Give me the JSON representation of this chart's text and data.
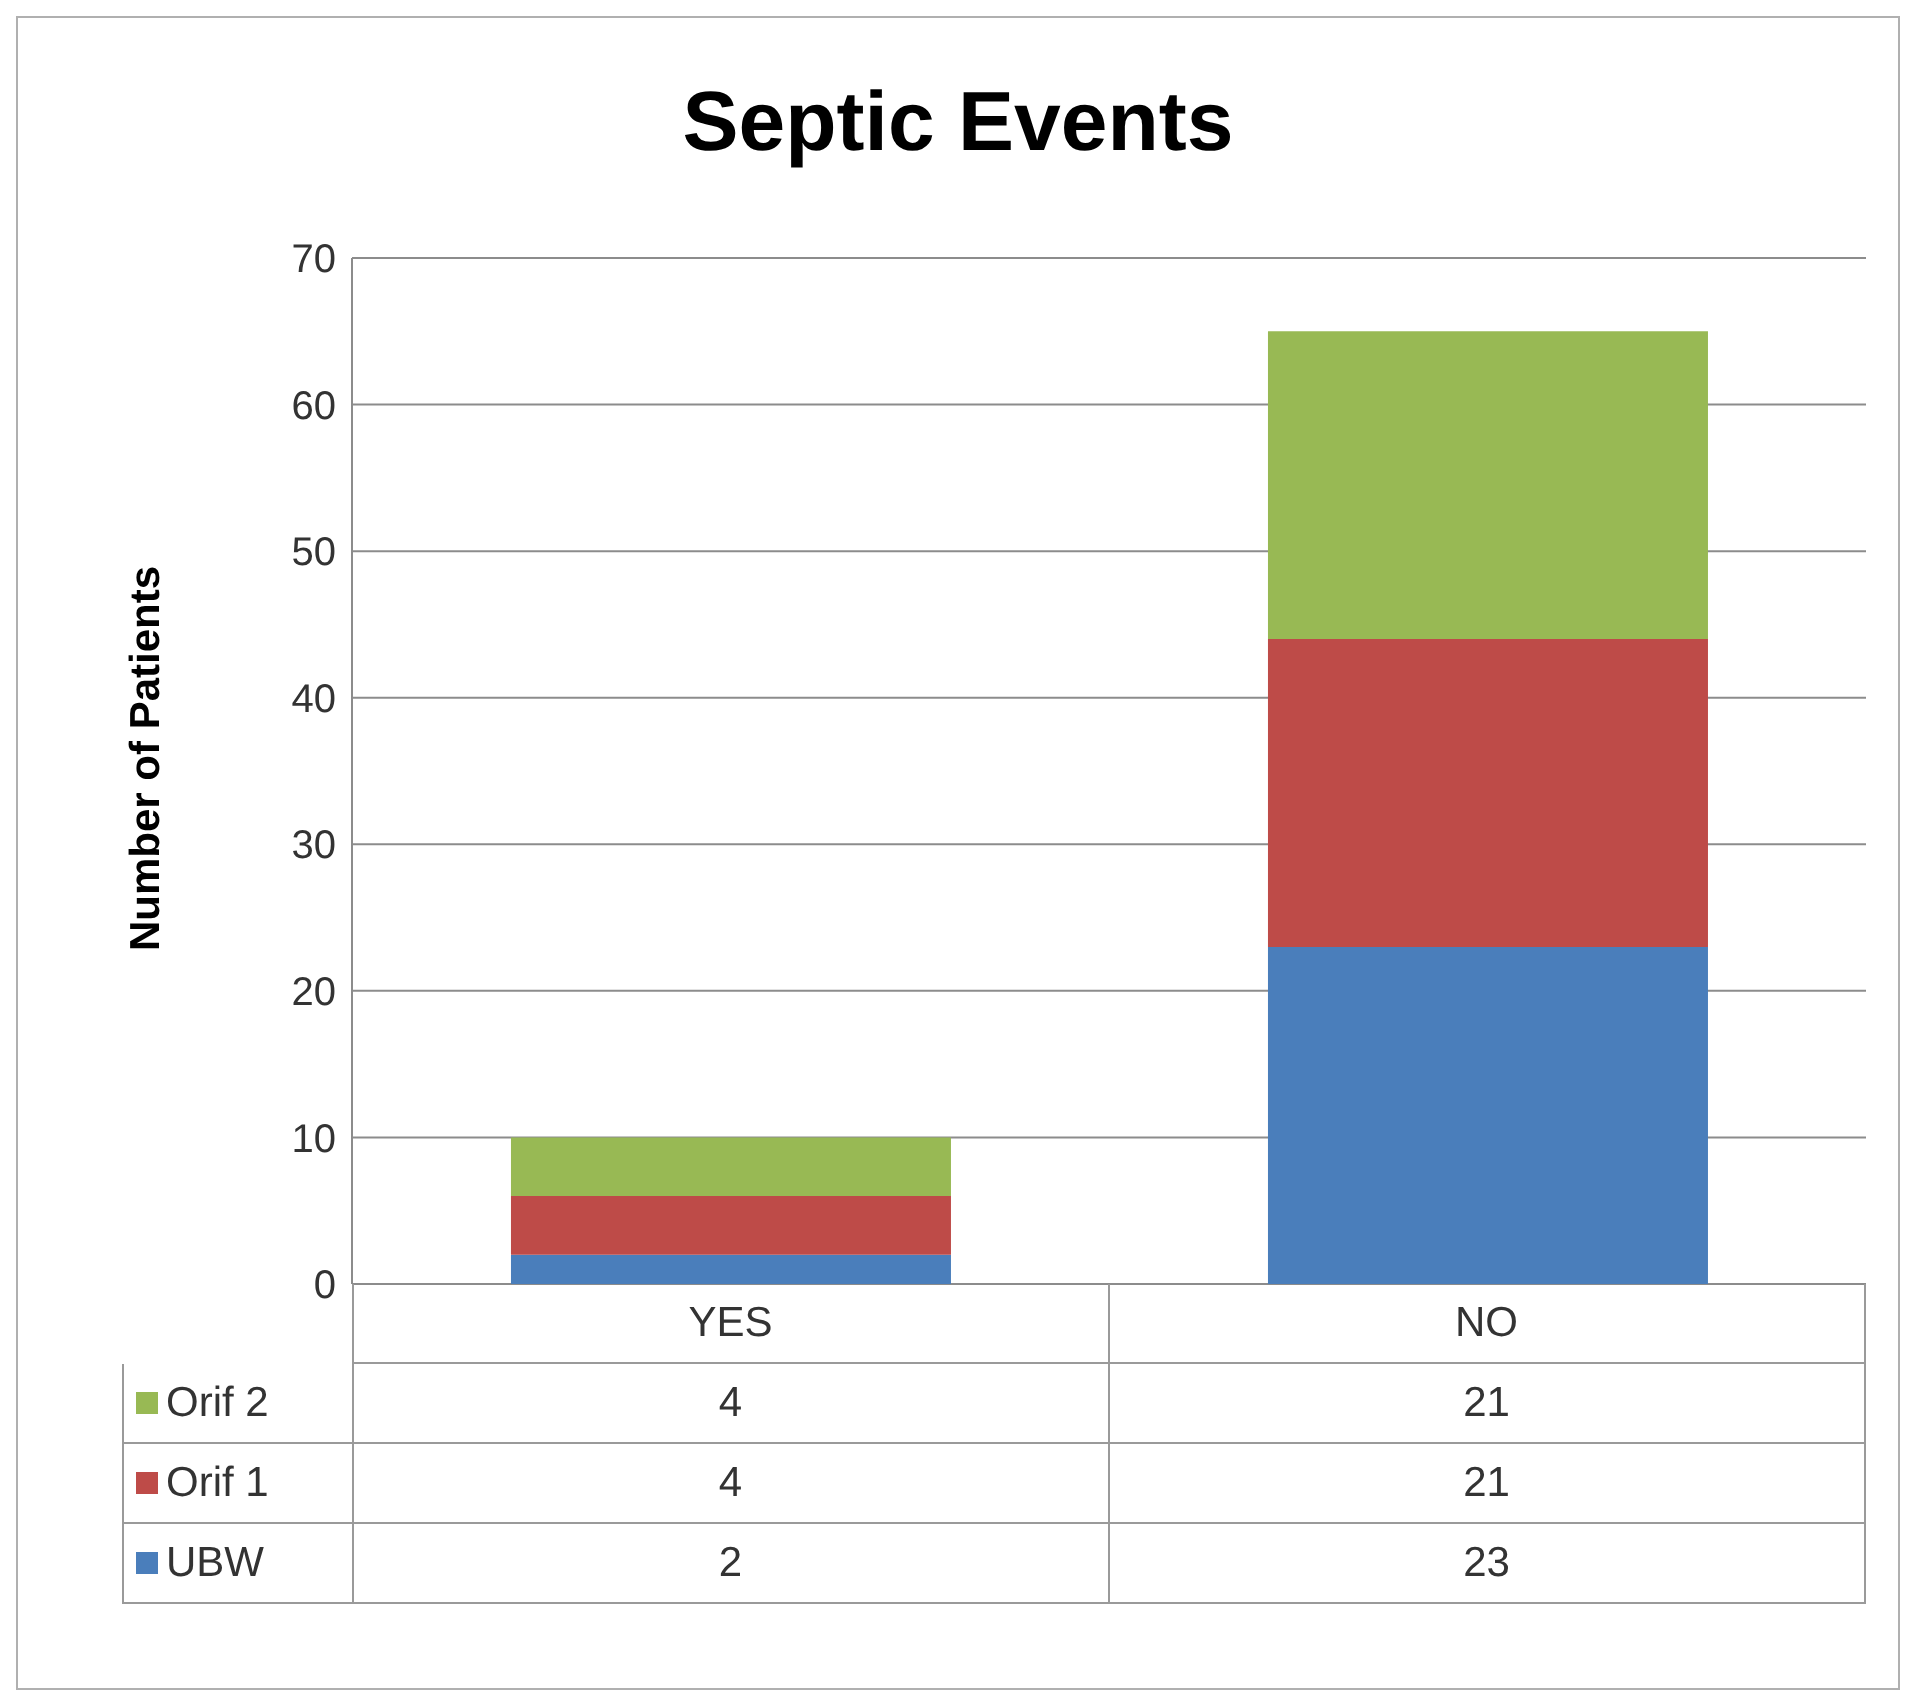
{
  "chart_data": {
    "type": "bar",
    "title": "Septic Events",
    "ylabel": "Number of Patients",
    "categories": [
      "YES",
      "NO"
    ],
    "series": [
      {
        "name": "UBW",
        "color": "#4a7ebb",
        "values": [
          2,
          23
        ],
        "value_labels": [
          "2",
          "23"
        ]
      },
      {
        "name": "Orif 1",
        "color": "#be4b48",
        "values": [
          4,
          21
        ],
        "value_labels": [
          "4",
          "21"
        ]
      },
      {
        "name": "Orif 2",
        "color": "#98b954",
        "values": [
          4,
          21
        ],
        "value_labels": [
          "4",
          "21"
        ]
      }
    ],
    "stacked": true,
    "ylim": [
      0,
      70
    ],
    "yticks": [
      0,
      10,
      20,
      30,
      40,
      50,
      60,
      70
    ],
    "grid": "y",
    "legend": "bottom"
  }
}
